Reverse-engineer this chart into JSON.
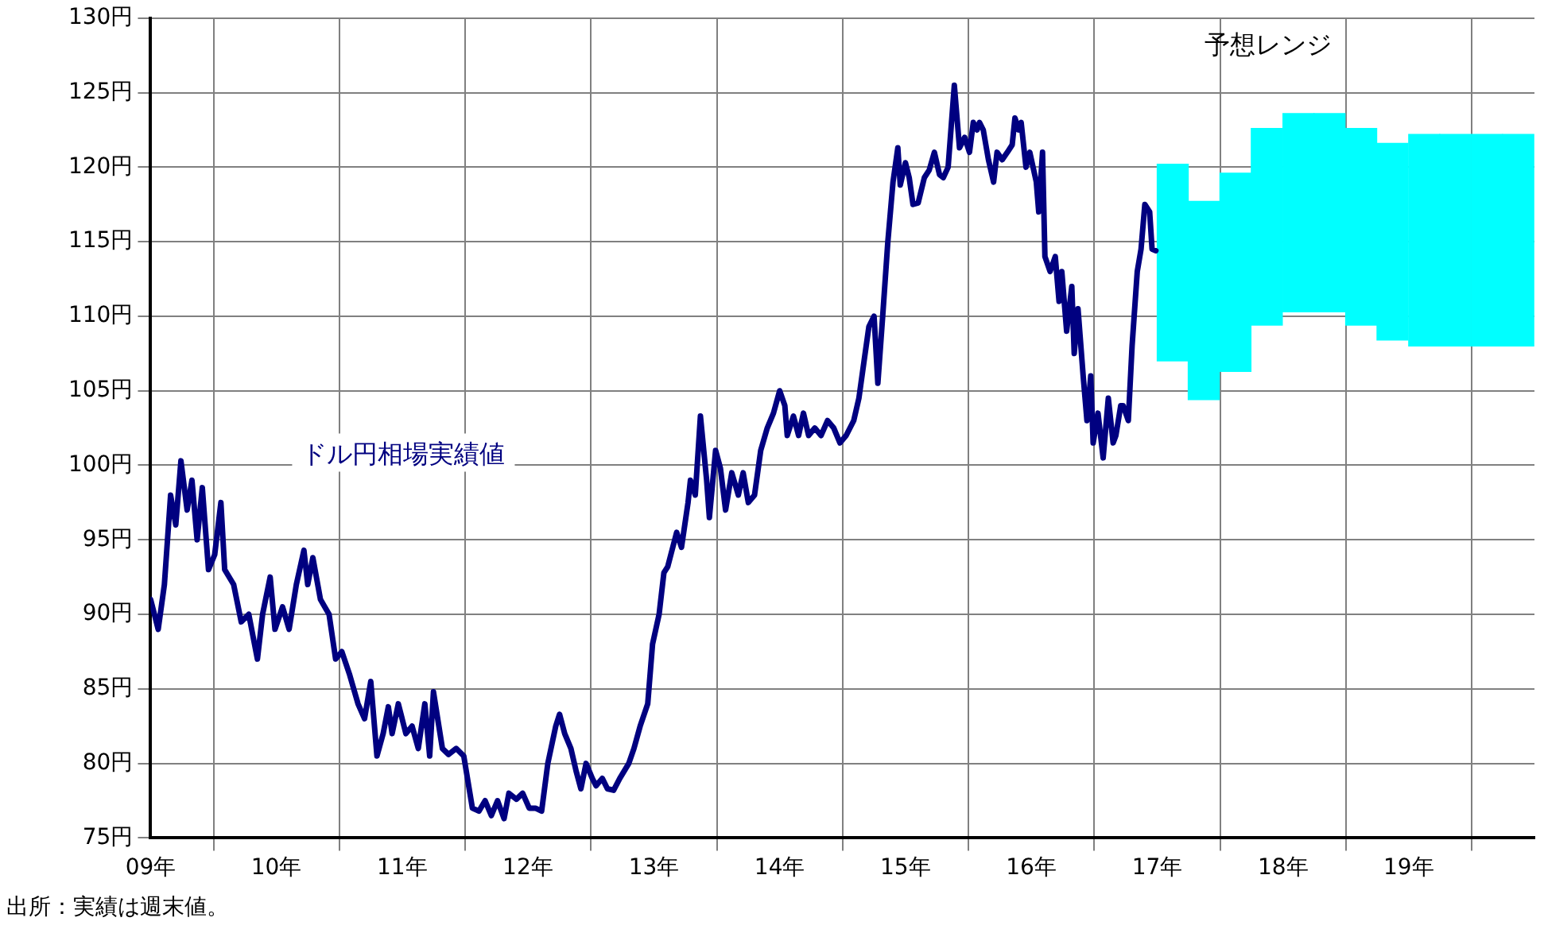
{
  "chart_data": {
    "type": "line",
    "xlim": [
      "2009-01-01",
      "2020-01-01"
    ],
    "xticks": [
      {
        "value": "2009",
        "label": "09年"
      },
      {
        "value": "2010",
        "label": "10年"
      },
      {
        "value": "2011",
        "label": "11年"
      },
      {
        "value": "2012",
        "label": "12年"
      },
      {
        "value": "2013",
        "label": "13年"
      },
      {
        "value": "2014",
        "label": "14年"
      },
      {
        "value": "2015",
        "label": "15年"
      },
      {
        "value": "2016",
        "label": "16年"
      },
      {
        "value": "2017",
        "label": "17年"
      },
      {
        "value": "2018",
        "label": "18年"
      },
      {
        "value": "2019",
        "label": "19年"
      }
    ],
    "ylim": [
      75,
      130
    ],
    "yticks": [
      {
        "value": 75,
        "label": "75円"
      },
      {
        "value": 80,
        "label": "80円"
      },
      {
        "value": 85,
        "label": "85円"
      },
      {
        "value": 90,
        "label": "90円"
      },
      {
        "value": 95,
        "label": "95円"
      },
      {
        "value": 100,
        "label": "100円"
      },
      {
        "value": 105,
        "label": "105円"
      },
      {
        "value": 110,
        "label": "110円"
      },
      {
        "value": 115,
        "label": "115円"
      },
      {
        "value": 120,
        "label": "120円"
      },
      {
        "value": 125,
        "label": "125円"
      },
      {
        "value": 130,
        "label": "130円"
      }
    ],
    "grid": true,
    "legend": false,
    "marker": "none",
    "line_style": "solid",
    "series": [
      {
        "name": "予想レンジ",
        "type": "bar",
        "color": "#00ffff",
        "x": [
          "2017-02-15",
          "2017-05-16",
          "2017-08-16",
          "2017-11-15",
          "2018-02-15",
          "2018-05-16",
          "2018-08-16",
          "2018-11-15",
          "2019-02-15",
          "2019-05-16",
          "2019-08-16",
          "2019-11-15"
        ],
        "base": [
          107,
          104.4,
          106.3,
          109.4,
          110.3,
          110.3,
          109.4,
          108.4,
          108,
          108,
          108,
          108
        ],
        "values": [
          13.2,
          13.3,
          13.3,
          13.2,
          13.3,
          13.3,
          13.2,
          13.2,
          14.2,
          14.2,
          14.2,
          14.2
        ]
      },
      {
        "name": "ドル円相場実績値",
        "color": "#000080",
        "x": [
          "2009-01-01",
          "2009-01-23",
          "2009-02-10",
          "2009-02-28",
          "2009-03-15",
          "2009-03-30",
          "2009-04-17",
          "2009-05-01",
          "2009-05-16",
          "2009-05-31",
          "2009-06-18",
          "2009-07-06",
          "2009-07-24",
          "2009-08-04",
          "2009-08-30",
          "2009-09-21",
          "2009-10-13",
          "2009-11-07",
          "2009-11-22",
          "2009-12-14",
          "2009-12-28",
          "2010-01-19",
          "2010-02-07",
          "2010-02-28",
          "2010-03-22",
          "2010-04-02",
          "2010-04-17",
          "2010-05-09",
          "2010-06-03",
          "2010-06-22",
          "2010-07-10",
          "2010-08-01",
          "2010-08-26",
          "2010-09-14",
          "2010-10-02",
          "2010-10-20",
          "2010-11-07",
          "2010-11-22",
          "2010-12-03",
          "2010-12-21",
          "2011-01-12",
          "2011-01-30",
          "2011-02-17",
          "2011-03-08",
          "2011-03-22",
          "2011-04-02",
          "2011-04-28",
          "2011-05-16",
          "2011-06-07",
          "2011-06-29",
          "2011-07-24",
          "2011-08-12",
          "2011-08-30",
          "2011-09-17",
          "2011-10-05",
          "2011-10-24",
          "2011-11-07",
          "2011-11-29",
          "2011-12-17",
          "2012-01-05",
          "2012-01-23",
          "2012-02-10",
          "2012-02-28",
          "2012-03-22",
          "2012-04-02",
          "2012-04-17",
          "2012-05-05",
          "2012-05-20",
          "2012-06-03",
          "2012-06-18",
          "2012-07-06",
          "2012-07-17",
          "2012-08-04",
          "2012-08-19",
          "2012-09-06",
          "2012-09-24",
          "2012-10-20",
          "2012-11-04",
          "2012-11-22",
          "2012-12-14",
          "2012-12-28",
          "2013-01-16",
          "2013-01-30",
          "2013-02-10",
          "2013-03-08",
          "2013-03-22",
          "2013-04-10",
          "2013-04-17",
          "2013-05-01",
          "2013-05-16",
          "2013-06-03",
          "2013-06-11",
          "2013-06-29",
          "2013-07-13",
          "2013-07-28",
          "2013-08-15",
          "2013-09-03",
          "2013-09-17",
          "2013-10-02",
          "2013-10-20",
          "2013-11-07",
          "2013-11-26",
          "2013-12-14",
          "2014-01-01",
          "2014-01-16",
          "2014-01-23",
          "2014-02-10",
          "2014-02-25",
          "2014-03-11",
          "2014-03-26",
          "2014-04-13",
          "2014-05-01",
          "2014-05-20",
          "2014-06-07",
          "2014-06-25",
          "2014-07-13",
          "2014-08-04",
          "2014-08-19",
          "2014-09-03",
          "2014-09-17",
          "2014-10-02",
          "2014-10-13",
          "2014-10-27",
          "2014-11-11",
          "2014-11-26",
          "2014-12-10",
          "2014-12-17",
          "2015-01-01",
          "2015-01-12",
          "2015-01-23",
          "2015-02-07",
          "2015-02-25",
          "2015-03-11",
          "2015-03-26",
          "2015-04-10",
          "2015-04-21",
          "2015-05-05",
          "2015-05-23",
          "2015-06-07",
          "2015-06-22",
          "2015-07-06",
          "2015-07-17",
          "2015-07-28",
          "2015-08-04",
          "2015-08-15",
          "2015-08-30",
          "2015-09-14",
          "2015-09-24",
          "2015-10-09",
          "2015-10-24",
          "2015-11-07",
          "2015-11-15",
          "2015-11-26",
          "2015-12-03",
          "2015-12-17",
          "2015-12-28",
          "2016-01-16",
          "2016-01-23",
          "2016-02-03",
          "2016-02-10",
          "2016-02-25",
          "2016-03-11",
          "2016-03-22",
          "2016-03-30",
          "2016-04-13",
          "2016-04-28",
          "2016-05-05",
          "2016-05-16",
          "2016-05-31",
          "2016-06-11",
          "2016-06-22",
          "2016-06-29",
          "2016-07-13",
          "2016-07-28",
          "2016-08-12",
          "2016-08-26",
          "2016-09-03",
          "2016-09-17",
          "2016-09-24",
          "2016-10-09",
          "2016-10-20",
          "2016-11-04",
          "2016-11-15",
          "2016-11-26",
          "2016-12-10",
          "2016-12-17",
          "2016-12-28"
        ],
        "values": [
          91,
          89,
          92,
          98,
          96,
          100.3,
          97,
          99,
          95,
          98.5,
          93,
          94,
          97.5,
          93,
          92,
          89.5,
          90,
          87,
          90,
          92.5,
          89,
          90.5,
          89,
          92,
          94.3,
          92,
          93.8,
          91,
          90,
          87,
          87.5,
          86,
          84,
          83,
          85.5,
          80.5,
          82,
          83.8,
          82,
          84,
          82,
          82.5,
          81,
          84,
          80.5,
          84.8,
          81,
          80.6,
          81,
          80.5,
          77,
          76.8,
          77.5,
          76.5,
          77.5,
          76.3,
          78,
          77.6,
          78,
          77,
          77,
          76.8,
          80,
          82.5,
          83.3,
          82,
          81,
          79.5,
          78.3,
          80,
          79,
          78.5,
          79,
          78.3,
          78.2,
          79,
          80,
          81,
          82.5,
          84,
          88,
          90,
          92.8,
          93.2,
          95.5,
          94.5,
          97.5,
          99,
          98,
          103.3,
          99,
          96.5,
          101,
          99.8,
          97,
          99.5,
          98,
          99.5,
          97.5,
          98,
          101,
          102.5,
          103.5,
          105,
          104,
          102,
          103.3,
          102,
          103.5,
          102,
          102.5,
          102,
          103,
          102.5,
          101.5,
          102,
          103,
          104.5,
          107,
          109.3,
          110,
          105.5,
          110,
          115,
          119,
          121.3,
          118.8,
          120.3,
          119.3,
          117.5,
          117.6,
          119.3,
          119.8,
          121,
          119.5,
          119.3,
          120,
          125.5,
          121.3,
          122,
          121,
          123,
          122.5,
          123,
          122.5,
          120.5,
          119,
          121,
          120.5,
          121,
          121.5,
          123.3,
          122.5,
          123,
          120,
          121,
          119,
          117,
          121,
          114,
          113,
          114,
          111,
          113,
          109,
          112,
          107.5,
          110.5,
          106,
          103,
          106,
          101.5,
          103.5,
          100.5,
          104.5,
          101.5,
          102,
          104,
          104,
          103,
          108,
          113,
          114.5,
          117.5,
          117,
          114.5,
          114.4
        ]
      }
    ],
    "annotations": [
      "出所：実績は週末値。"
    ]
  }
}
